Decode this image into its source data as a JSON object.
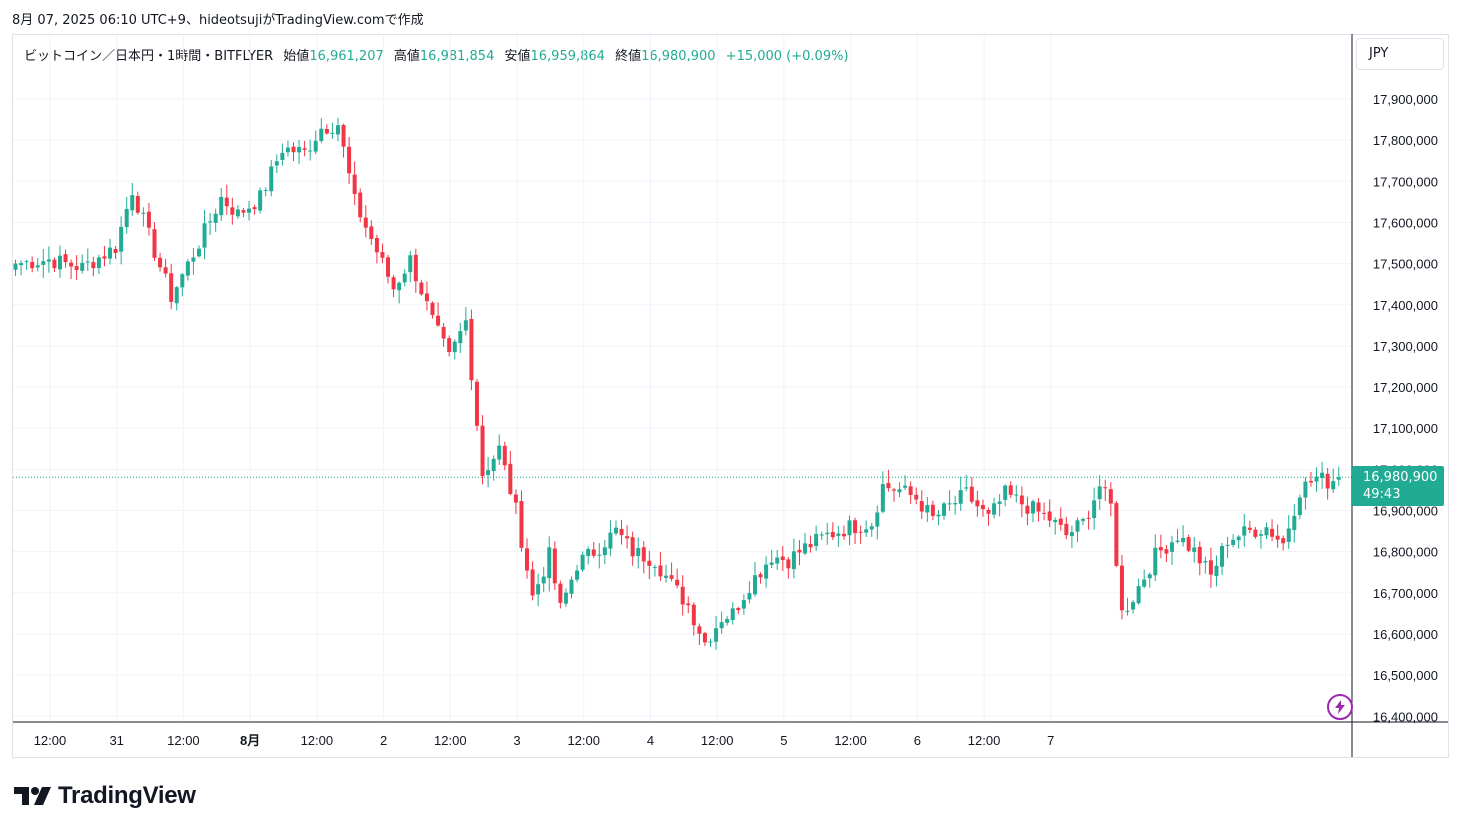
{
  "caption": "8月 07, 2025 06:10 UTC+9、hideotsujiがTradingView.comで作成",
  "legend": {
    "symbol": "ビットコイン／日本円・1時間・BITFLYER",
    "open_label": "始値",
    "open": "16,961,207",
    "high_label": "高値",
    "high": "16,981,854",
    "low_label": "安値",
    "low": "16,959,864",
    "close_label": "終値",
    "close": "16,980,900",
    "change": "+15,000 (+0.09%)"
  },
  "currency": "JPY",
  "price_tag": {
    "price": "16,980,900",
    "countdown": "49:43"
  },
  "brand": {
    "name": "TradingView",
    "icon": "tradingview-logo-icon"
  },
  "bolt_button": {
    "icon": "lightning-bolt-icon"
  },
  "colors": {
    "up": "#22ab94",
    "down": "#f23645",
    "grid": "#f0f3fa",
    "axis_text": "#131722",
    "last_price_line": "#22ab94",
    "bolt": "#9c27b0"
  },
  "chart_data": {
    "type": "candlestick",
    "interval": "1h",
    "y_axis_labels": [
      "17,900,000",
      "17,800,000",
      "17,700,000",
      "17,600,000",
      "17,500,000",
      "17,400,000",
      "17,300,000",
      "17,200,000",
      "17,100,000",
      "17,000,000",
      "16,900,000",
      "16,800,000",
      "16,700,000",
      "16,600,000",
      "16,500,000",
      "16,400,000"
    ],
    "ylim": [
      16380000,
      18050000
    ],
    "x_axis_labels": [
      "12:00",
      "31",
      "12:00",
      "8月",
      "12:00",
      "2",
      "12:00",
      "3",
      "12:00",
      "4",
      "12:00",
      "5",
      "12:00",
      "6",
      "12:00",
      "7"
    ],
    "last_price": 16980900,
    "grid": true,
    "anchors": [
      {
        "i": 0,
        "v": 17500000
      },
      {
        "i": 6,
        "v": 17510000
      },
      {
        "i": 12,
        "v": 17490000
      },
      {
        "i": 18,
        "v": 17540000
      },
      {
        "i": 21,
        "v": 17680000
      },
      {
        "i": 25,
        "v": 17530000
      },
      {
        "i": 28,
        "v": 17420000
      },
      {
        "i": 33,
        "v": 17550000
      },
      {
        "i": 37,
        "v": 17660000
      },
      {
        "i": 40,
        "v": 17620000
      },
      {
        "i": 44,
        "v": 17660000
      },
      {
        "i": 48,
        "v": 17780000
      },
      {
        "i": 52,
        "v": 17770000
      },
      {
        "i": 55,
        "v": 17830000
      },
      {
        "i": 58,
        "v": 17840000
      },
      {
        "i": 61,
        "v": 17650000
      },
      {
        "i": 64,
        "v": 17560000
      },
      {
        "i": 68,
        "v": 17440000
      },
      {
        "i": 71,
        "v": 17510000
      },
      {
        "i": 75,
        "v": 17360000
      },
      {
        "i": 78,
        "v": 17270000
      },
      {
        "i": 81,
        "v": 17360000
      },
      {
        "i": 84,
        "v": 16990000
      },
      {
        "i": 87,
        "v": 17050000
      },
      {
        "i": 90,
        "v": 16900000
      },
      {
        "i": 93,
        "v": 16690000
      },
      {
        "i": 96,
        "v": 16790000
      },
      {
        "i": 98,
        "v": 16660000
      },
      {
        "i": 101,
        "v": 16770000
      },
      {
        "i": 104,
        "v": 16800000
      },
      {
        "i": 108,
        "v": 16850000
      },
      {
        "i": 111,
        "v": 16800000
      },
      {
        "i": 115,
        "v": 16780000
      },
      {
        "i": 118,
        "v": 16720000
      },
      {
        "i": 121,
        "v": 16670000
      },
      {
        "i": 124,
        "v": 16580000
      },
      {
        "i": 127,
        "v": 16640000
      },
      {
        "i": 129,
        "v": 16650000
      },
      {
        "i": 132,
        "v": 16720000
      },
      {
        "i": 136,
        "v": 16790000
      },
      {
        "i": 139,
        "v": 16780000
      },
      {
        "i": 142,
        "v": 16810000
      },
      {
        "i": 146,
        "v": 16840000
      },
      {
        "i": 150,
        "v": 16860000
      },
      {
        "i": 154,
        "v": 16870000
      },
      {
        "i": 156,
        "v": 16960000
      },
      {
        "i": 159,
        "v": 16950000
      },
      {
        "i": 162,
        "v": 16930000
      },
      {
        "i": 165,
        "v": 16880000
      },
      {
        "i": 168,
        "v": 16910000
      },
      {
        "i": 171,
        "v": 16940000
      },
      {
        "i": 175,
        "v": 16880000
      },
      {
        "i": 178,
        "v": 16940000
      },
      {
        "i": 182,
        "v": 16910000
      },
      {
        "i": 186,
        "v": 16880000
      },
      {
        "i": 189,
        "v": 16840000
      },
      {
        "i": 192,
        "v": 16870000
      },
      {
        "i": 195,
        "v": 16960000
      },
      {
        "i": 197,
        "v": 16910000
      },
      {
        "i": 199,
        "v": 16650000
      },
      {
        "i": 201,
        "v": 16690000
      },
      {
        "i": 205,
        "v": 16790000
      },
      {
        "i": 209,
        "v": 16840000
      },
      {
        "i": 212,
        "v": 16800000
      },
      {
        "i": 215,
        "v": 16740000
      },
      {
        "i": 218,
        "v": 16830000
      },
      {
        "i": 222,
        "v": 16850000
      },
      {
        "i": 225,
        "v": 16860000
      },
      {
        "i": 228,
        "v": 16820000
      },
      {
        "i": 231,
        "v": 16950000
      },
      {
        "i": 234,
        "v": 16980000
      },
      {
        "i": 236,
        "v": 16970000
      },
      {
        "i": 238,
        "v": 16980900
      }
    ]
  }
}
